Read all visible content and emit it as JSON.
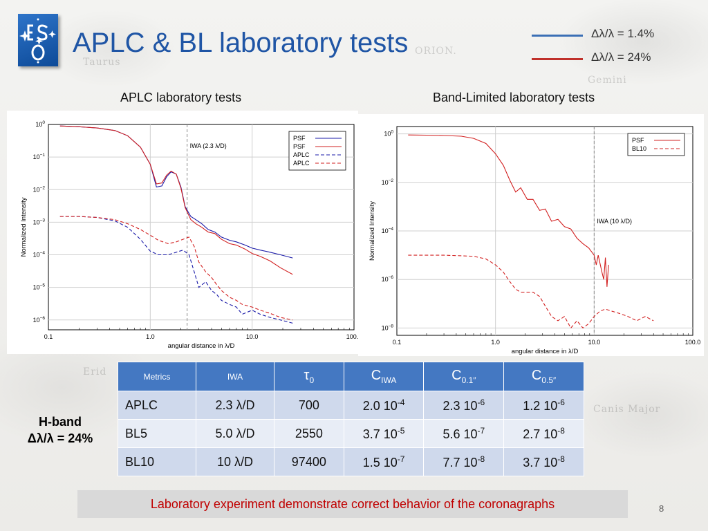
{
  "slide": {
    "title": "APLC & BL laboratory tests",
    "page_number": "8",
    "legend": [
      {
        "label": "Δλ/λ = 1.4%",
        "color": "#3b6fb5"
      },
      {
        "label": "Δλ/λ = 24%",
        "color": "#c0312b"
      }
    ],
    "left_heading": "APLC laboratory tests",
    "right_heading": "Band-Limited laboratory tests",
    "band_label_line1": "H-band",
    "band_label_line2": "Δλ/λ = 24%",
    "footer": "Laboratory experiment demonstrate correct behavior of the coronagraphs",
    "background_words": [
      "ORION.",
      "Taurus",
      "Gemini",
      "Erid",
      "Canis Major"
    ]
  },
  "table": {
    "headers": [
      "Metrics",
      "IWA",
      "τ0",
      "CIWA",
      "C0.1″",
      "C0.5″"
    ],
    "rows": [
      {
        "name": "APLC",
        "iwa": "2.3 λ/D",
        "tau": "700",
        "c_iwa": [
          "2.0 10",
          "-4"
        ],
        "c01": [
          "2.3 10",
          "-6"
        ],
        "c05": [
          "1.2 10",
          "-6"
        ]
      },
      {
        "name": "BL5",
        "iwa": "5.0 λ/D",
        "tau": "2550",
        "c_iwa": [
          "3.7 10",
          "-5"
        ],
        "c01": [
          "5.6 10",
          "-7"
        ],
        "c05": [
          "2.7 10",
          "-8"
        ]
      },
      {
        "name": "BL10",
        "iwa": "10 λ/D",
        "tau": "97400",
        "c_iwa": [
          "1.5 10",
          "-7"
        ],
        "c01": [
          "7.7 10",
          "-8"
        ],
        "c05": [
          "3.7 10",
          "-8"
        ]
      }
    ]
  },
  "chart_data": [
    {
      "type": "line",
      "title": "",
      "xlabel": "angular distance in λ/D",
      "ylabel": "Normalized Intensity",
      "xscale": "log",
      "yscale": "log",
      "xlim": [
        0.1,
        100.0
      ],
      "ylim": [
        5e-07,
        1
      ],
      "xticks": [
        "0.1",
        "1.0",
        "10.0",
        "100.0"
      ],
      "yticks": [
        {
          "base": "10",
          "exp": "0"
        },
        {
          "base": "10",
          "exp": "−1"
        },
        {
          "base": "10",
          "exp": "−2"
        },
        {
          "base": "10",
          "exp": "−3"
        },
        {
          "base": "10",
          "exp": "−4"
        },
        {
          "base": "10",
          "exp": "−5"
        },
        {
          "base": "10",
          "exp": "−6"
        }
      ],
      "ytick_values": [
        1,
        0.1,
        0.01,
        0.001,
        0.0001,
        1e-05,
        1e-06
      ],
      "grid": true,
      "legend_position": "top-right",
      "vline": {
        "x": 2.3,
        "label": "IWA (2.3 λ/D)"
      },
      "series": [
        {
          "name": "PSF",
          "color": "#1a1aa8",
          "dash": false,
          "x": [
            0.13,
            0.2,
            0.3,
            0.45,
            0.6,
            0.8,
            1.0,
            1.15,
            1.3,
            1.45,
            1.6,
            1.8,
            2.0,
            2.2,
            2.5,
            2.8,
            3.2,
            3.7,
            4.3,
            5.0,
            6.0,
            7.0,
            8.5,
            10.0,
            12.0,
            15.0,
            19.0,
            25.0
          ],
          "y": [
            0.9,
            0.85,
            0.78,
            0.65,
            0.45,
            0.2,
            0.06,
            0.012,
            0.013,
            0.025,
            0.035,
            0.03,
            0.012,
            0.003,
            0.0015,
            0.0012,
            0.0009,
            0.0006,
            0.0005,
            0.00035,
            0.00028,
            0.00025,
            0.0002,
            0.00016,
            0.00014,
            0.00012,
            0.0001,
            8e-05
          ]
        },
        {
          "name": "PSF",
          "color": "#d22020",
          "dash": false,
          "x": [
            0.13,
            0.2,
            0.3,
            0.45,
            0.6,
            0.8,
            1.0,
            1.15,
            1.3,
            1.45,
            1.6,
            1.8,
            2.0,
            2.2,
            2.5,
            2.8,
            3.2,
            3.7,
            4.3,
            5.0,
            6.0,
            7.0,
            8.5,
            10.0,
            12.0,
            15.0,
            19.0,
            25.0
          ],
          "y": [
            0.9,
            0.85,
            0.78,
            0.65,
            0.45,
            0.2,
            0.06,
            0.015,
            0.016,
            0.028,
            0.037,
            0.03,
            0.011,
            0.0028,
            0.0012,
            0.0009,
            0.0007,
            0.0005,
            0.00045,
            0.0003,
            0.00022,
            0.0002,
            0.00015,
            0.00011,
            9e-05,
            6.5e-05,
            4e-05,
            2.5e-05
          ]
        },
        {
          "name": "APLC",
          "color": "#1a1aa8",
          "dash": true,
          "x": [
            0.13,
            0.2,
            0.3,
            0.45,
            0.6,
            0.8,
            1.0,
            1.2,
            1.5,
            1.8,
            2.1,
            2.4,
            2.7,
            3.0,
            3.5,
            4.0,
            4.5,
            5.0,
            6.0,
            7.0,
            8.0,
            10.0,
            12.0,
            15.0,
            19.0,
            25.0
          ],
          "y": [
            0.0015,
            0.0015,
            0.0014,
            0.0011,
            0.0007,
            0.0003,
            0.00013,
            0.0001,
            0.0001,
            0.00012,
            0.00014,
            0.0001,
            3e-05,
            1e-05,
            1.5e-05,
            8e-06,
            6e-06,
            4e-06,
            3e-06,
            2.5e-06,
            1.5e-06,
            2e-06,
            1.5e-06,
            1.2e-06,
            1e-06,
            8e-07
          ]
        },
        {
          "name": "APLC",
          "color": "#d22020",
          "dash": true,
          "x": [
            0.13,
            0.2,
            0.3,
            0.45,
            0.6,
            0.8,
            1.0,
            1.2,
            1.5,
            1.8,
            2.1,
            2.4,
            2.7,
            3.0,
            3.5,
            4.0,
            4.5,
            5.0,
            6.0,
            7.0,
            8.0,
            10.0,
            12.0,
            15.0,
            19.0,
            25.0
          ],
          "y": [
            0.0015,
            0.0015,
            0.0014,
            0.0012,
            0.0009,
            0.0006,
            0.0004,
            0.00028,
            0.00022,
            0.00025,
            0.0003,
            0.00035,
            0.00018,
            6e-05,
            3e-05,
            2e-05,
            1.2e-05,
            8e-06,
            5e-06,
            4e-06,
            3e-06,
            2.5e-06,
            2e-06,
            1.6e-06,
            1.2e-06,
            1e-06
          ]
        }
      ]
    },
    {
      "type": "line",
      "title": "",
      "xlabel": "angular distance in λ/D",
      "ylabel": "Normalized Intensity",
      "xscale": "log",
      "yscale": "log",
      "xlim": [
        0.1,
        100.0
      ],
      "ylim": [
        5e-09,
        2
      ],
      "xticks": [
        "0.1",
        "1.0",
        "10.0",
        "100.0"
      ],
      "yticks": [
        {
          "base": "10",
          "exp": "0"
        },
        {
          "base": "10",
          "exp": "−2"
        },
        {
          "base": "10",
          "exp": "−4"
        },
        {
          "base": "10",
          "exp": "−6"
        },
        {
          "base": "10",
          "exp": "−8"
        }
      ],
      "ytick_values": [
        1,
        0.01,
        0.0001,
        1e-06,
        1e-08
      ],
      "grid": true,
      "legend_position": "top-right",
      "vline": {
        "x": 10.0,
        "label": "IWA (10 λ/D)"
      },
      "series": [
        {
          "name": "PSF",
          "color": "#d22020",
          "dash": false,
          "x": [
            0.13,
            0.2,
            0.3,
            0.45,
            0.6,
            0.8,
            1.0,
            1.2,
            1.4,
            1.6,
            1.8,
            2.1,
            2.4,
            2.8,
            3.2,
            3.7,
            4.3,
            5.0,
            5.8,
            6.7,
            7.7,
            8.8,
            10.0,
            10.5,
            11.0,
            12.0,
            12.5,
            13.0,
            13.5,
            14.0
          ],
          "y": [
            0.9,
            0.88,
            0.85,
            0.8,
            0.65,
            0.4,
            0.15,
            0.05,
            0.012,
            0.004,
            0.006,
            0.002,
            0.002,
            0.0007,
            0.0008,
            0.00025,
            0.0003,
            0.00015,
            0.00012,
            5e-05,
            3e-05,
            2e-05,
            1e-05,
            4e-06,
            1e-05,
            2e-06,
            1e-06,
            8e-06,
            5e-07,
            4e-06
          ]
        },
        {
          "name": "BL10",
          "color": "#d22020",
          "dash": true,
          "x": [
            0.13,
            0.2,
            0.3,
            0.45,
            0.6,
            0.8,
            1.0,
            1.2,
            1.4,
            1.6,
            1.8,
            2.1,
            2.4,
            2.8,
            3.2,
            3.7,
            4.3,
            5.0,
            5.8,
            6.7,
            7.7,
            8.8,
            10.0,
            11.5,
            13.0,
            15.0,
            18.0,
            22.0,
            27.0,
            33.0,
            40.0
          ],
          "y": [
            1e-05,
            1e-05,
            1e-05,
            9.5e-06,
            9e-06,
            7e-06,
            4e-06,
            2e-06,
            8e-07,
            4e-07,
            3e-07,
            3e-07,
            3e-07,
            2e-07,
            8e-08,
            3e-08,
            2e-08,
            3e-08,
            1e-08,
            2e-08,
            1e-08,
            1.5e-08,
            3e-08,
            5e-08,
            6e-08,
            5e-08,
            4e-08,
            3e-08,
            2e-08,
            3e-08,
            2e-08
          ]
        }
      ]
    }
  ]
}
